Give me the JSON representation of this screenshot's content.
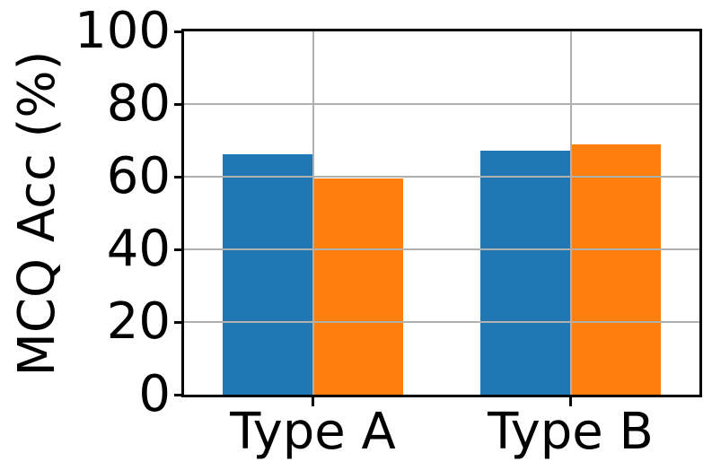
{
  "figure": {
    "background_color": "#ffffff",
    "spine_color": "#000000",
    "gridline_color": "#b0b0b0",
    "tick_color": "#000000"
  },
  "chart_data": {
    "type": "bar",
    "title": "",
    "categories": [
      "Type A",
      "Type B"
    ],
    "series": [
      {
        "name": "blue",
        "color": "#1f77b4",
        "values": [
          66.3,
          67.2
        ]
      },
      {
        "name": "orange",
        "color": "#ff7f0e",
        "values": [
          59.5,
          69.0
        ]
      }
    ],
    "xlabel": "",
    "ylabel": "MCQ Acc (%)",
    "ylim": [
      0,
      100
    ],
    "yticks": [
      0,
      20,
      40,
      60,
      80,
      100
    ],
    "ytick_labels": [
      "0",
      "20",
      "40",
      "60",
      "80",
      "100"
    ],
    "grid": "both axes, gray, drawn above bars",
    "legend_position": "none",
    "bar_width_fraction": 0.35
  }
}
